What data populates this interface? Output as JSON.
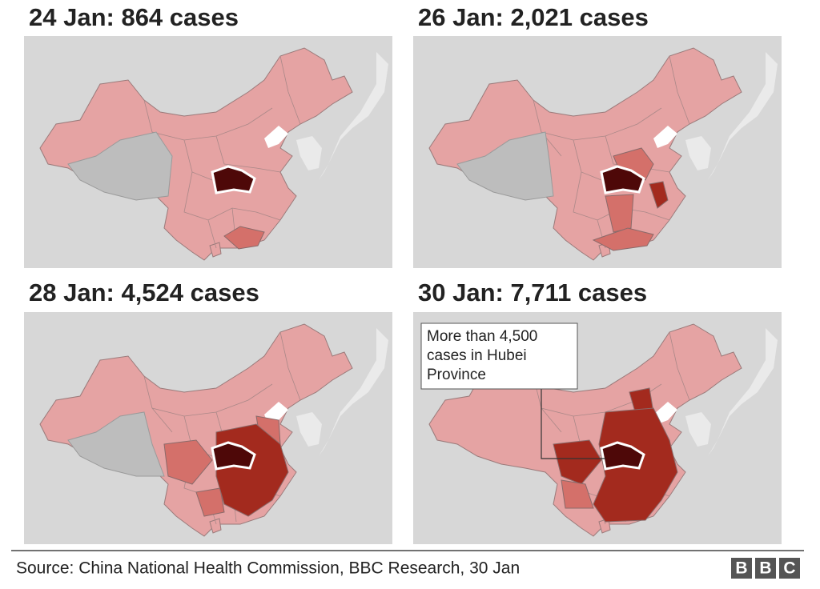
{
  "panels": [
    {
      "title": "24 Jan: 864 cases"
    },
    {
      "title": "26 Jan: 2,021 cases"
    },
    {
      "title": "28 Jan: 4,524 cases"
    },
    {
      "title": "30 Jan: 7,711 cases"
    }
  ],
  "annotation": [
    "More than 4,500",
    "cases in Hubei",
    "Province"
  ],
  "source": "Source: China National Health Commission, BBC Research, 30 Jan",
  "logo": [
    "B",
    "B",
    "C"
  ]
}
